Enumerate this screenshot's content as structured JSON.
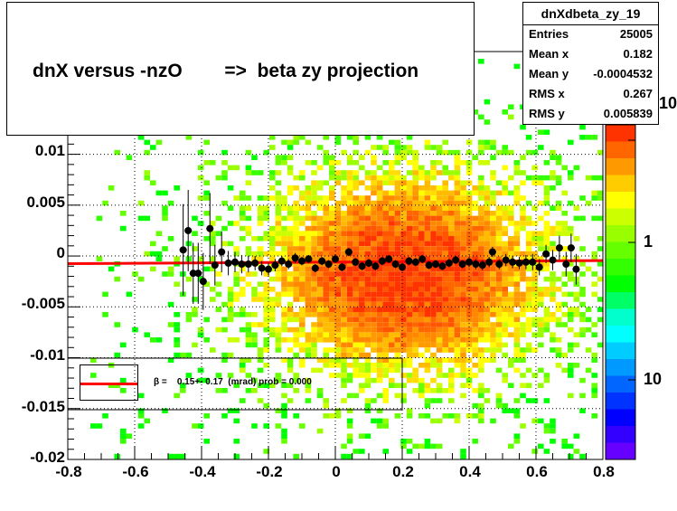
{
  "title": "dnX versus -nzO        =>  beta zy projection",
  "stats": {
    "name": "dnXdbeta_zy_19",
    "rows": [
      {
        "label": "Entries",
        "value": "25005"
      },
      {
        "label": "Mean x",
        "value": "0.182"
      },
      {
        "label": "Mean y",
        "value": "-0.0004532"
      },
      {
        "label": "RMS x",
        "value": "0.267"
      },
      {
        "label": "RMS y",
        "value": "0.005839"
      }
    ]
  },
  "palette": {
    "labels": [
      "10",
      "1",
      "10"
    ],
    "colors": [
      "#ff3300",
      "#ff6600",
      "#ff9900",
      "#ffcc00",
      "#ffff00",
      "#ccff00",
      "#99ff00",
      "#66ff00",
      "#33ff00",
      "#00ff00",
      "#00ff66",
      "#00ffcc",
      "#00ffff",
      "#00ccff",
      "#0099ff",
      "#0066ff",
      "#0033ff",
      "#0000ff",
      "#3300ff",
      "#6600ff"
    ]
  },
  "legend": {
    "text": "β =    0.15+- 0.17  (mrad) prob = 0.000",
    "line_color": "#ff0000"
  },
  "chart_data": {
    "type": "heatmap",
    "title": "dnX versus -nzO        =>  beta zy projection",
    "xlim": [
      -0.8,
      0.8
    ],
    "ylim": [
      -0.02,
      0.0201
    ],
    "x_ticks": [
      "-0.8",
      "-0.6",
      "-0.4",
      "-0.2",
      "0",
      "0.2",
      "0.4",
      "0.6",
      "0.8"
    ],
    "x_tick_values": [
      -0.8,
      -0.6,
      -0.4,
      -0.2,
      0,
      0.2,
      0.4,
      0.6,
      0.8
    ],
    "y_ticks": [
      "0.01",
      "0.005",
      "0",
      "-0.005",
      "-0.01",
      "-0.015",
      "-0.02"
    ],
    "y_tick_values": [
      0.01,
      0.005,
      0,
      -0.005,
      -0.01,
      -0.015,
      -0.02
    ],
    "grid": true,
    "fit_line": {
      "x": [
        -0.8,
        0.8
      ],
      "y": [
        -0.00075,
        -0.00045
      ],
      "color": "#ff0000"
    },
    "profile_points": [
      {
        "x": -0.455,
        "y": 0.0006,
        "err": 0.0045
      },
      {
        "x": -0.44,
        "y": 0.0025,
        "err": 0.004
      },
      {
        "x": -0.425,
        "y": -0.0017,
        "err": 0.003
      },
      {
        "x": -0.41,
        "y": -0.0017,
        "err": 0.003
      },
      {
        "x": -0.395,
        "y": -0.0025,
        "err": 0.0028
      },
      {
        "x": -0.375,
        "y": 0.0027,
        "err": 0.0035
      },
      {
        "x": -0.36,
        "y": -0.0009,
        "err": 0.002
      },
      {
        "x": -0.34,
        "y": 0.0004,
        "err": 0.002
      },
      {
        "x": -0.32,
        "y": -0.0007,
        "err": 0.0012
      },
      {
        "x": -0.3,
        "y": -0.0006,
        "err": 0.001
      },
      {
        "x": -0.28,
        "y": -0.0008,
        "err": 0.0009
      },
      {
        "x": -0.26,
        "y": -0.0008,
        "err": 0.0008
      },
      {
        "x": -0.24,
        "y": -0.0007,
        "err": 0.0007
      },
      {
        "x": -0.22,
        "y": -0.0012,
        "err": 0.0007
      },
      {
        "x": -0.2,
        "y": -0.0013,
        "err": 0.0006
      },
      {
        "x": -0.18,
        "y": -0.0009,
        "err": 0.0006
      },
      {
        "x": -0.16,
        "y": -0.0005,
        "err": 0.0005
      },
      {
        "x": -0.14,
        "y": -0.0008,
        "err": 0.0005
      },
      {
        "x": -0.12,
        "y": -0.0002,
        "err": 0.0005
      },
      {
        "x": -0.1,
        "y": -0.0005,
        "err": 0.0004
      },
      {
        "x": -0.08,
        "y": -0.0003,
        "err": 0.0004
      },
      {
        "x": -0.06,
        "y": -0.0012,
        "err": 0.0004
      },
      {
        "x": -0.04,
        "y": -0.0005,
        "err": 0.0004
      },
      {
        "x": -0.02,
        "y": -0.0008,
        "err": 0.0004
      },
      {
        "x": 0.0,
        "y": -0.0003,
        "err": 0.0004
      },
      {
        "x": 0.02,
        "y": -0.0011,
        "err": 0.0004
      },
      {
        "x": 0.04,
        "y": 0.0004,
        "err": 0.0004
      },
      {
        "x": 0.06,
        "y": -0.0006,
        "err": 0.0004
      },
      {
        "x": 0.08,
        "y": -0.001,
        "err": 0.0004
      },
      {
        "x": 0.1,
        "y": -0.0007,
        "err": 0.0004
      },
      {
        "x": 0.12,
        "y": -0.001,
        "err": 0.0004
      },
      {
        "x": 0.14,
        "y": -0.0005,
        "err": 0.0004
      },
      {
        "x": 0.16,
        "y": -0.0003,
        "err": 0.0004
      },
      {
        "x": 0.18,
        "y": -0.0008,
        "err": 0.0004
      },
      {
        "x": 0.2,
        "y": -0.0011,
        "err": 0.0004
      },
      {
        "x": 0.22,
        "y": -0.0005,
        "err": 0.0004
      },
      {
        "x": 0.24,
        "y": -0.0006,
        "err": 0.0004
      },
      {
        "x": 0.26,
        "y": -0.0003,
        "err": 0.0004
      },
      {
        "x": 0.28,
        "y": -0.0009,
        "err": 0.0004
      },
      {
        "x": 0.3,
        "y": -0.0008,
        "err": 0.0004
      },
      {
        "x": 0.32,
        "y": -0.001,
        "err": 0.0004
      },
      {
        "x": 0.34,
        "y": -0.0007,
        "err": 0.0004
      },
      {
        "x": 0.36,
        "y": -0.0004,
        "err": 0.0004
      },
      {
        "x": 0.38,
        "y": -0.0008,
        "err": 0.0004
      },
      {
        "x": 0.4,
        "y": -0.0006,
        "err": 0.0005
      },
      {
        "x": 0.42,
        "y": -0.0008,
        "err": 0.0005
      },
      {
        "x": 0.44,
        "y": -0.0009,
        "err": 0.0005
      },
      {
        "x": 0.46,
        "y": -0.0006,
        "err": 0.0005
      },
      {
        "x": 0.47,
        "y": 0.0004,
        "err": 0.0005
      },
      {
        "x": 0.49,
        "y": -0.0008,
        "err": 0.0005
      },
      {
        "x": 0.51,
        "y": -0.0004,
        "err": 0.0006
      },
      {
        "x": 0.53,
        "y": -0.0006,
        "err": 0.0006
      },
      {
        "x": 0.55,
        "y": -0.0007,
        "err": 0.0006
      },
      {
        "x": 0.57,
        "y": -0.0006,
        "err": 0.0007
      },
      {
        "x": 0.59,
        "y": -0.0006,
        "err": 0.0008
      },
      {
        "x": 0.61,
        "y": -0.0011,
        "err": 0.0008
      },
      {
        "x": 0.63,
        "y": 0.0002,
        "err": 0.0009
      },
      {
        "x": 0.65,
        "y": -0.0004,
        "err": 0.001
      },
      {
        "x": 0.67,
        "y": 0.0008,
        "err": 0.0012
      },
      {
        "x": 0.69,
        "y": -0.0008,
        "err": 0.0012
      },
      {
        "x": 0.705,
        "y": 0.0008,
        "err": 0.0014
      },
      {
        "x": 0.72,
        "y": -0.0013,
        "err": 0.0015
      }
    ]
  }
}
